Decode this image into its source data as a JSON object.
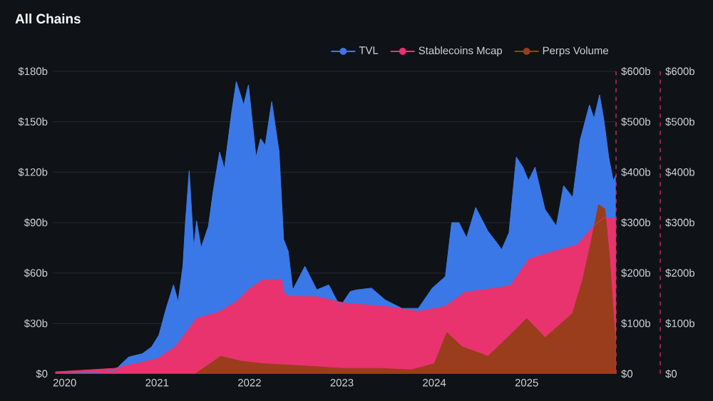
{
  "chart_data": {
    "type": "area",
    "title": "All Chains",
    "xlim": [
      "2019-11-15",
      "2025-12-20"
    ],
    "xticks": [
      "2020",
      "2021",
      "2022",
      "2023",
      "2024",
      "2025"
    ],
    "ylim": [
      0,
      180
    ],
    "yticks": [
      {
        "value": 0,
        "label": "$0"
      },
      {
        "value": 30,
        "label": "$30b"
      },
      {
        "value": 60,
        "label": "$60b"
      },
      {
        "value": 90,
        "label": "$90b"
      },
      {
        "value": 120,
        "label": "$120b"
      },
      {
        "value": 150,
        "label": "$150b"
      },
      {
        "value": 180,
        "label": "$180b"
      }
    ],
    "y2lim": [
      0,
      600
    ],
    "y2ticks": [
      {
        "value": 0,
        "label": "$0"
      },
      {
        "value": 100,
        "label": "$100b"
      },
      {
        "value": 200,
        "label": "$200b"
      },
      {
        "value": 300,
        "label": "$300b"
      },
      {
        "value": 400,
        "label": "$400b"
      },
      {
        "value": 500,
        "label": "$500b"
      },
      {
        "value": 600,
        "label": "$600b"
      }
    ],
    "y3lim": [
      0,
      600
    ],
    "y3ticks": [
      {
        "value": 0,
        "label": "$0"
      },
      {
        "value": 100,
        "label": "$100b"
      },
      {
        "value": 200,
        "label": "$200b"
      },
      {
        "value": 300,
        "label": "$300b"
      },
      {
        "value": 400,
        "label": "$400b"
      },
      {
        "value": 500,
        "label": "$500b"
      },
      {
        "value": 600,
        "label": "$600b"
      }
    ],
    "grid": "y",
    "legend": "top right",
    "series": [
      {
        "name": "TVL",
        "color": "#3b78e7",
        "x": [
          "2019-11-25",
          "2020-05-01",
          "2020-07-16",
          "2020-09-10",
          "2020-11-03",
          "2020-12-10",
          "2021-01-08",
          "2021-02-06",
          "2021-03-07",
          "2021-03-25",
          "2021-04-13",
          "2021-04-23",
          "2021-05-08",
          "2021-05-26",
          "2021-06-06",
          "2021-06-24",
          "2021-07-23",
          "2021-08-11",
          "2021-09-05",
          "2021-09-24",
          "2021-10-23",
          "2021-11-10",
          "2021-12-09",
          "2021-12-28",
          "2022-01-27",
          "2022-02-14",
          "2022-03-04",
          "2022-03-30",
          "2022-04-28",
          "2022-05-16",
          "2022-06-03",
          "2022-06-21",
          "2022-08-08",
          "2022-09-24",
          "2022-11-10",
          "2022-12-25",
          "2023-02-03",
          "2023-03-01",
          "2023-04-28",
          "2023-06-21",
          "2023-08-26",
          "2023-10-30",
          "2023-12-24",
          "2024-02-14",
          "2024-03-10",
          "2024-04-08",
          "2024-05-08",
          "2024-06-13",
          "2024-07-31",
          "2024-09-05",
          "2024-09-24",
          "2024-10-23",
          "2024-11-21",
          "2024-12-17",
          "2025-01-08",
          "2025-02-03",
          "2025-03-14",
          "2025-04-28",
          "2025-05-27",
          "2025-07-02",
          "2025-07-31",
          "2025-09-06",
          "2025-09-24",
          "2025-10-16",
          "2025-11-03",
          "2025-11-21",
          "2025-12-09",
          "2025-12-19"
        ],
        "values": [
          0,
          1,
          2,
          10,
          12,
          16,
          23,
          39,
          53,
          43,
          64,
          90,
          121,
          75,
          91,
          75,
          88,
          109,
          132,
          122,
          156,
          174,
          160,
          172,
          129,
          140,
          136,
          162,
          132,
          80,
          73,
          50,
          64,
          50,
          53,
          40,
          49,
          50,
          51,
          44,
          39,
          39,
          51,
          58,
          90,
          90,
          81,
          99,
          85,
          78,
          74,
          84,
          129,
          123,
          115,
          123,
          98,
          88,
          112,
          105,
          139,
          160,
          152,
          166,
          150,
          129,
          115,
          118
        ]
      },
      {
        "name": "Stablecoins Mcap",
        "axis": "y2",
        "color": "#e8336f",
        "x": [
          "2019-11-25",
          "2020-07-16",
          "2021-01-01",
          "2021-03-15",
          "2021-06-06",
          "2021-08-30",
          "2021-11-10",
          "2021-12-28",
          "2022-02-20",
          "2022-05-08",
          "2022-05-16",
          "2022-06-03",
          "2022-09-24",
          "2023-01-15",
          "2023-06-21",
          "2023-10-30",
          "2024-02-14",
          "2024-05-01",
          "2024-09-12",
          "2024-10-30",
          "2025-01-10",
          "2025-05-15",
          "2025-07-20",
          "2025-09-24",
          "2025-11-03",
          "2025-12-19"
        ],
        "values": [
          4,
          11,
          30,
          54,
          110,
          122,
          143,
          167,
          186,
          188,
          162,
          154,
          153,
          140,
          134,
          124,
          134,
          162,
          171,
          176,
          228,
          247,
          256,
          294,
          310,
          308
        ]
      },
      {
        "name": "Perps Volume",
        "axis": "y3",
        "color": "#9a3d1c",
        "x": [
          "2019-11-25",
          "2021-06-01",
          "2021-09-10",
          "2021-12-01",
          "2022-03-01",
          "2022-09-01",
          "2023-01-01",
          "2023-06-01",
          "2023-10-01",
          "2024-01-01",
          "2024-02-20",
          "2024-04-20",
          "2024-08-01",
          "2024-11-25",
          "2025-01-01",
          "2025-03-15",
          "2025-07-01",
          "2025-08-10",
          "2025-09-12",
          "2025-10-12",
          "2025-11-06",
          "2025-11-24",
          "2025-12-19"
        ],
        "values": [
          0,
          0,
          35,
          25,
          20,
          15,
          11,
          11,
          8,
          20,
          82,
          54,
          35,
          91,
          110,
          72,
          120,
          186,
          261,
          336,
          327,
          233,
          54
        ]
      }
    ]
  }
}
